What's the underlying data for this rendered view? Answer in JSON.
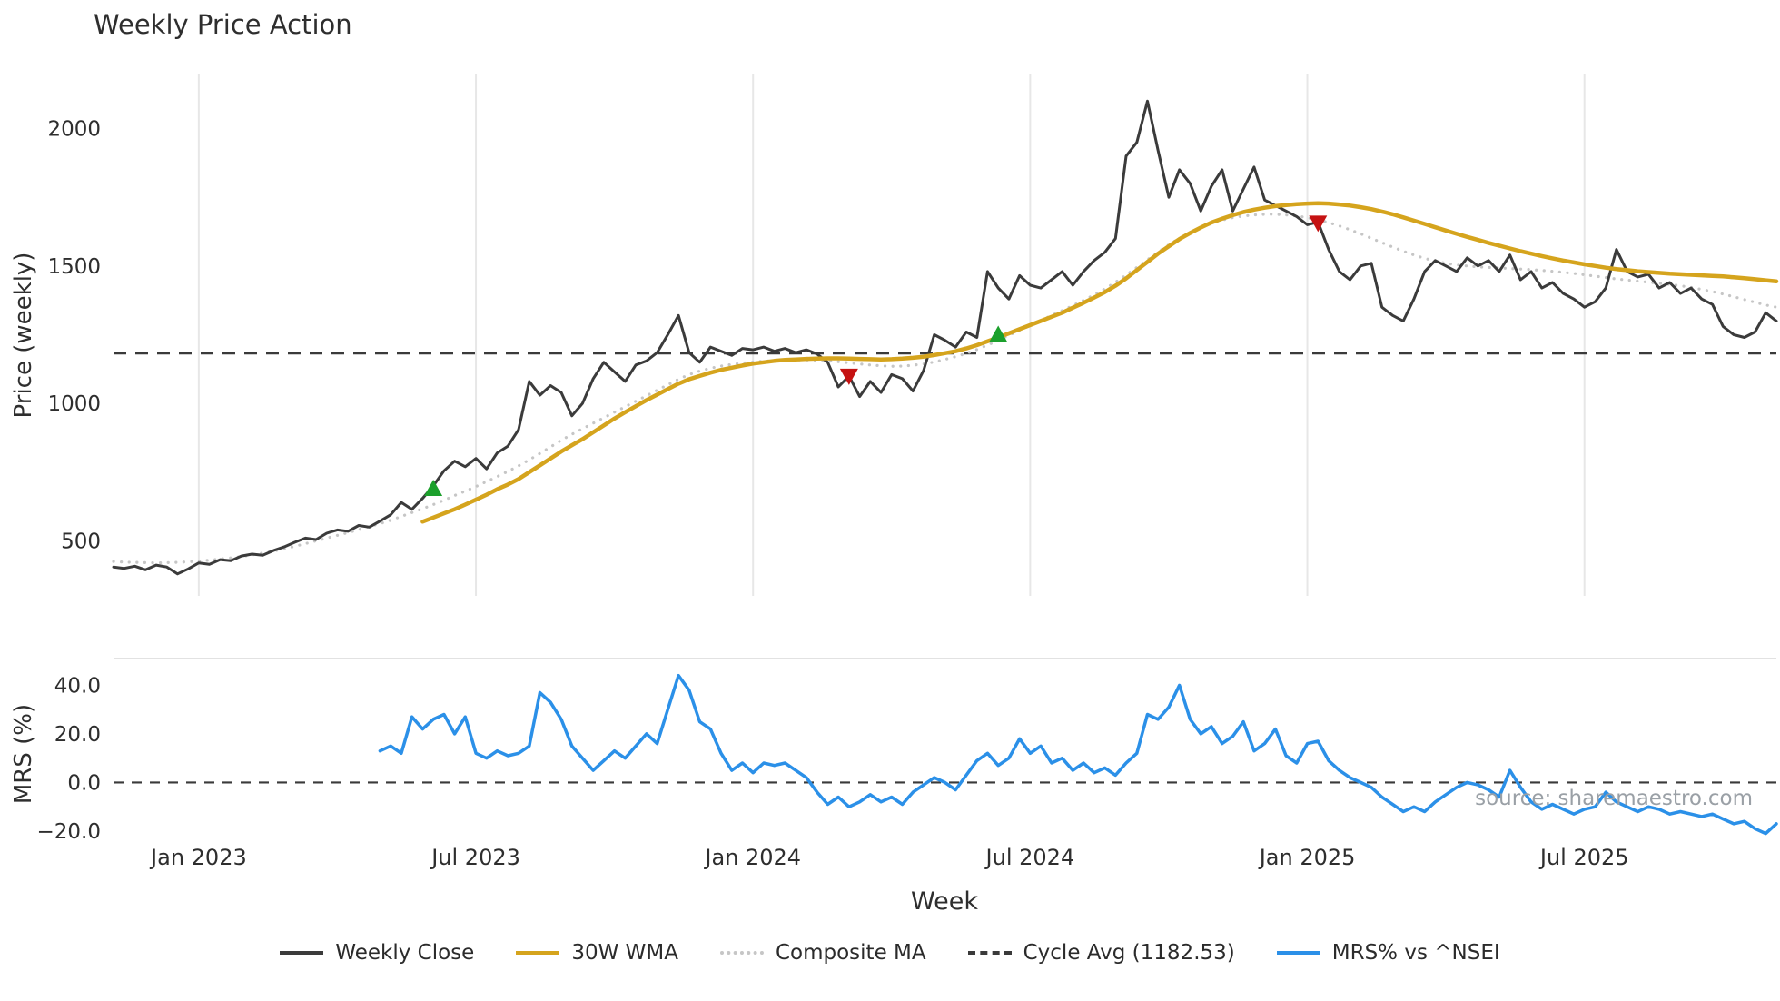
{
  "chart_data": {
    "type": "line",
    "title": "Weekly Price Action",
    "watermark": "source: sharemaestro.com",
    "x_axis": {
      "label": "Week",
      "weeks_total": 157,
      "ticks": [
        {
          "week": 8,
          "label": "Jan 2023"
        },
        {
          "week": 34,
          "label": "Jul 2023"
        },
        {
          "week": 60,
          "label": "Jan 2024"
        },
        {
          "week": 86,
          "label": "Jul 2024"
        },
        {
          "week": 112,
          "label": "Jan 2025"
        },
        {
          "week": 138,
          "label": "Jul 2025"
        }
      ]
    },
    "top_panel": {
      "y_label": "Price (weekly)",
      "y_domain": [
        300,
        2200
      ],
      "y_ticks": [
        {
          "value": 500,
          "label": "500"
        },
        {
          "value": 1000,
          "label": "1000"
        },
        {
          "value": 1500,
          "label": "1500"
        },
        {
          "value": 2000,
          "label": "2000"
        }
      ],
      "cycle_avg": 1182.53,
      "buy_color": "#1ca02c",
      "sell_color": "#c51212",
      "buy_markers": [
        {
          "week": 30,
          "price": 690
        },
        {
          "week": 83,
          "price": 1250
        }
      ],
      "sell_markers": [
        {
          "week": 69,
          "price": 1100
        },
        {
          "week": 113,
          "price": 1657
        }
      ],
      "series": [
        {
          "name": "Weekly Close",
          "color": "#3b3b3b",
          "style": "solid",
          "width": 3,
          "start_week": 0,
          "values": [
            405,
            400,
            408,
            395,
            412,
            405,
            380,
            398,
            420,
            415,
            432,
            428,
            445,
            452,
            448,
            465,
            478,
            495,
            510,
            505,
            528,
            540,
            535,
            556,
            550,
            572,
            595,
            640,
            615,
            655,
            700,
            755,
            790,
            770,
            800,
            762,
            820,
            845,
            905,
            1080,
            1030,
            1065,
            1040,
            955,
            1000,
            1090,
            1150,
            1115,
            1080,
            1140,
            1155,
            1185,
            1250,
            1320,
            1185,
            1150,
            1205,
            1190,
            1175,
            1200,
            1195,
            1205,
            1190,
            1200,
            1185,
            1195,
            1180,
            1150,
            1060,
            1100,
            1025,
            1080,
            1040,
            1105,
            1090,
            1045,
            1120,
            1250,
            1230,
            1205,
            1260,
            1240,
            1480,
            1420,
            1380,
            1465,
            1430,
            1420,
            1450,
            1480,
            1430,
            1480,
            1520,
            1550,
            1600,
            1900,
            1950,
            2100,
            1920,
            1750,
            1850,
            1800,
            1700,
            1790,
            1850,
            1700,
            1780,
            1860,
            1740,
            1720,
            1700,
            1680,
            1650,
            1660,
            1560,
            1480,
            1450,
            1500,
            1510,
            1350,
            1320,
            1300,
            1380,
            1480,
            1520,
            1500,
            1480,
            1530,
            1500,
            1520,
            1480,
            1540,
            1450,
            1480,
            1420,
            1440,
            1400,
            1380,
            1350,
            1370,
            1420,
            1560,
            1480,
            1460,
            1470,
            1420,
            1440,
            1400,
            1420,
            1380,
            1360,
            1280,
            1250,
            1240,
            1260,
            1330,
            1300
          ]
        },
        {
          "name": "30W WMA",
          "color": "#d5a41d",
          "style": "solid",
          "width": 4.5,
          "start_week": 29,
          "values": [
            570,
            585,
            600,
            615,
            632,
            650,
            668,
            688,
            705,
            725,
            750,
            775,
            800,
            825,
            848,
            870,
            895,
            920,
            945,
            968,
            990,
            1012,
            1032,
            1052,
            1072,
            1088,
            1100,
            1112,
            1122,
            1130,
            1138,
            1145,
            1150,
            1155,
            1158,
            1160,
            1162,
            1163,
            1164,
            1164,
            1163,
            1162,
            1161,
            1160,
            1161,
            1163,
            1166,
            1170,
            1176,
            1183,
            1190,
            1200,
            1212,
            1226,
            1240,
            1255,
            1270,
            1285,
            1300,
            1315,
            1330,
            1348,
            1366,
            1385,
            1405,
            1428,
            1455,
            1485,
            1515,
            1545,
            1572,
            1598,
            1620,
            1640,
            1658,
            1672,
            1685,
            1696,
            1705,
            1712,
            1718,
            1722,
            1725,
            1727,
            1728,
            1727,
            1724,
            1720,
            1714,
            1707,
            1698,
            1688,
            1677,
            1665,
            1653,
            1641,
            1629,
            1617,
            1606,
            1595,
            1584,
            1574,
            1564,
            1554,
            1545,
            1536,
            1528,
            1520,
            1513,
            1506,
            1500,
            1494,
            1489,
            1485,
            1481,
            1478,
            1475,
            1472,
            1470,
            1468,
            1466,
            1464,
            1462,
            1459,
            1456,
            1452,
            1448,
            1444
          ]
        },
        {
          "name": "Composite MA",
          "color": "#c6c6c6",
          "style": "dotted",
          "width": 3.2,
          "start_week": 0,
          "values": [
            425,
            423,
            422,
            421,
            420,
            421,
            422,
            424,
            427,
            430,
            434,
            438,
            443,
            449,
            456,
            463,
            471,
            480,
            490,
            500,
            510,
            520,
            530,
            541,
            552,
            563,
            575,
            589,
            603,
            617,
            632,
            648,
            665,
            681,
            698,
            716,
            734,
            753,
            773,
            795,
            818,
            842,
            866,
            888,
            908,
            928,
            948,
            968,
            988,
            1008,
            1028,
            1048,
            1068,
            1088,
            1105,
            1118,
            1128,
            1136,
            1142,
            1147,
            1151,
            1154,
            1156,
            1157,
            1158,
            1158,
            1157,
            1155,
            1152,
            1148,
            1144,
            1140,
            1137,
            1135,
            1136,
            1139,
            1144,
            1151,
            1160,
            1170,
            1182,
            1196,
            1212,
            1230,
            1248,
            1266,
            1284,
            1302,
            1320,
            1338,
            1356,
            1375,
            1395,
            1417,
            1441,
            1467,
            1495,
            1523,
            1551,
            1577,
            1601,
            1622,
            1640,
            1655,
            1667,
            1676,
            1682,
            1686,
            1688,
            1688,
            1686,
            1682,
            1676,
            1668,
            1658,
            1646,
            1632,
            1617,
            1601,
            1585,
            1569,
            1554,
            1540,
            1528,
            1518,
            1510,
            1504,
            1500,
            1497,
            1495,
            1493,
            1491,
            1489,
            1487,
            1484,
            1481,
            1477,
            1473,
            1468,
            1463,
            1458,
            1453,
            1449,
            1445,
            1441,
            1437,
            1433,
            1428,
            1422,
            1415,
            1407,
            1398,
            1388,
            1378,
            1368,
            1358,
            1350
          ]
        }
      ]
    },
    "bottom_panel": {
      "y_label": "MRS (%)",
      "y_domain": [
        -26,
        51
      ],
      "y_ticks": [
        {
          "value": 40,
          "label": "40.0"
        },
        {
          "value": 20,
          "label": "20.0"
        },
        {
          "value": 0,
          "label": "0.0"
        },
        {
          "value": -20,
          "label": "−20.0"
        }
      ],
      "zero_line": 0,
      "series": [
        {
          "name": "MRS% vs ^NSEI",
          "color": "#2b90e8",
          "style": "solid",
          "width": 3.5,
          "start_week": 25,
          "values": [
            13,
            15,
            12,
            27,
            22,
            26,
            28,
            20,
            27,
            12,
            10,
            13,
            11,
            12,
            15,
            37,
            33,
            26,
            15,
            10,
            5,
            9,
            13,
            10,
            15,
            20,
            16,
            30,
            44,
            38,
            25,
            22,
            12,
            5,
            8,
            4,
            8,
            7,
            8,
            5,
            2,
            -4,
            -9,
            -6,
            -10,
            -8,
            -5,
            -8,
            -6,
            -9,
            -4,
            -1,
            2,
            0,
            -3,
            3,
            9,
            12,
            7,
            10,
            18,
            12,
            15,
            8,
            10,
            5,
            8,
            4,
            6,
            3,
            8,
            12,
            28,
            26,
            31,
            40,
            26,
            20,
            23,
            16,
            19,
            25,
            13,
            16,
            22,
            11,
            8,
            16,
            17,
            9,
            5,
            2,
            0,
            -2,
            -6,
            -9,
            -12,
            -10,
            -12,
            -8,
            -5,
            -2,
            0,
            -1,
            -3,
            -6,
            5,
            -2,
            -8,
            -11,
            -9,
            -11,
            -13,
            -11,
            -10,
            -4,
            -8,
            -10,
            -12,
            -10,
            -11,
            -13,
            -12,
            -13,
            -14,
            -13,
            -15,
            -17,
            -16,
            -19,
            -21,
            -17
          ]
        }
      ]
    },
    "legend": [
      {
        "label": "Weekly Close",
        "style": "solid",
        "color": "#3b3b3b"
      },
      {
        "label": "30W WMA",
        "style": "solid",
        "color": "#d5a41d"
      },
      {
        "label": "Composite MA",
        "style": "dotted",
        "color": "#c6c6c6"
      },
      {
        "label": "Cycle Avg (1182.53)",
        "style": "dashed",
        "color": "#3a3a3a"
      },
      {
        "label": "MRS% vs ^NSEI",
        "style": "solid",
        "color": "#2b90e8"
      }
    ]
  }
}
